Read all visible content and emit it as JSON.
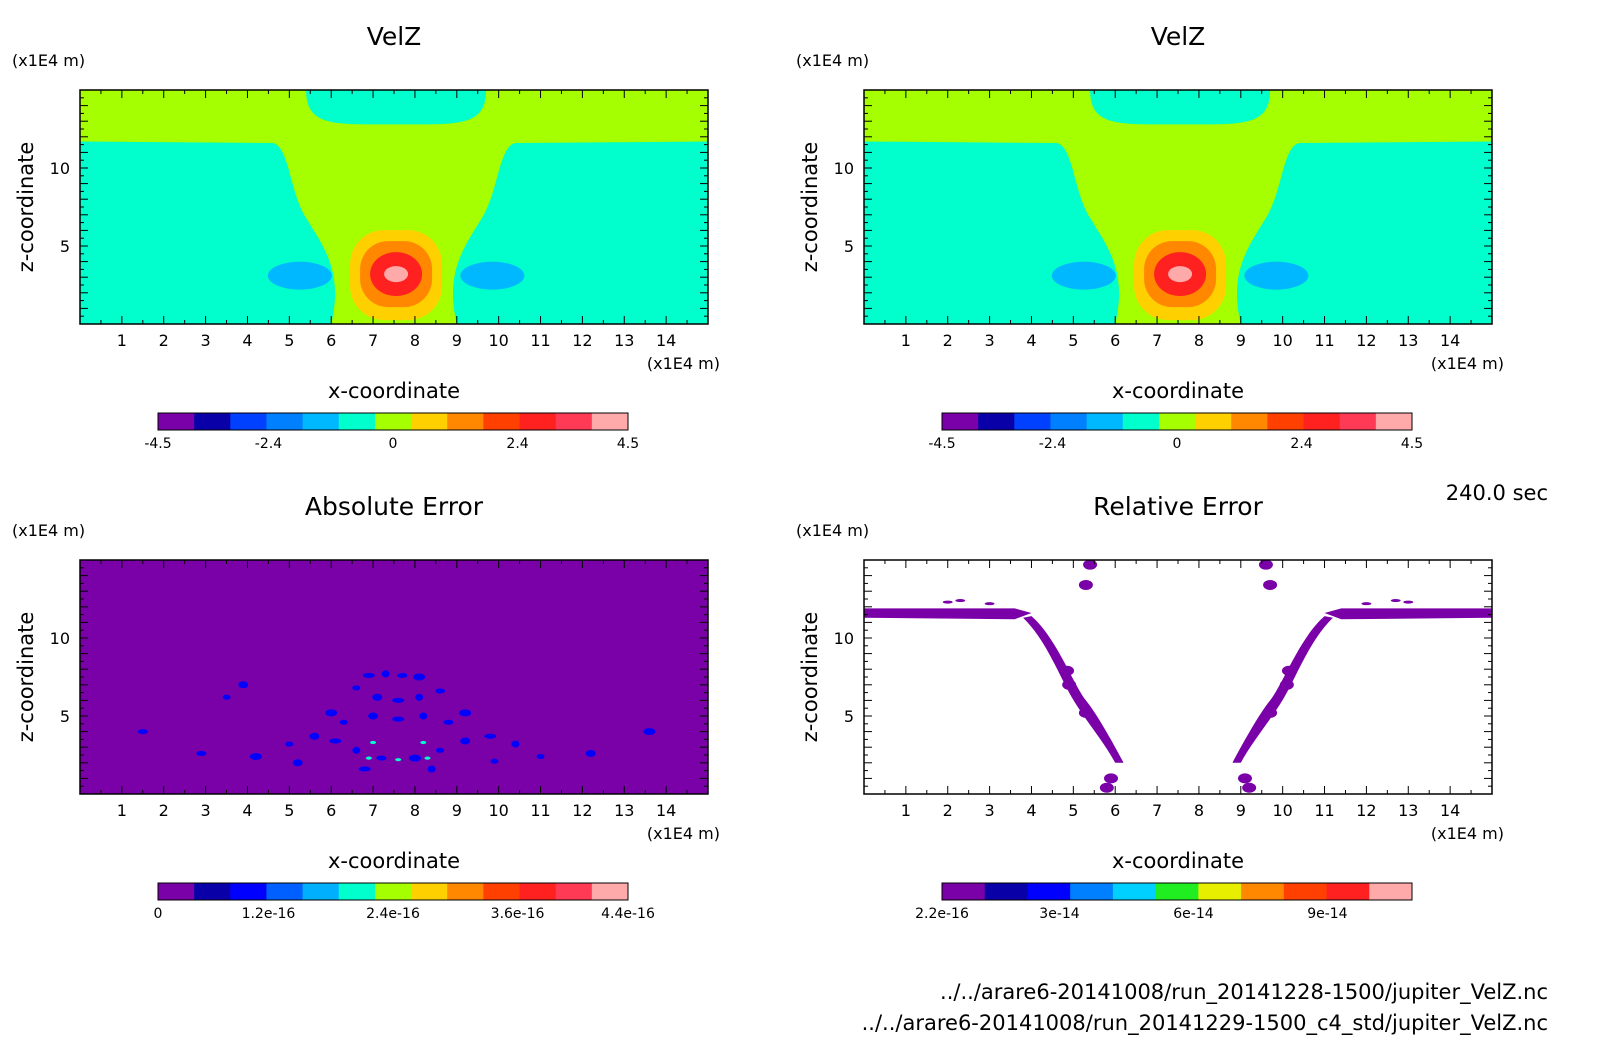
{
  "figure": {
    "time_label": "240.0 sec",
    "files": [
      "../../arare6-20141008/run_20141228-1500/jupiter_VelZ.nc",
      "../../arare6-20141008/run_20141229-1500_c4_std/jupiter_VelZ.nc"
    ]
  },
  "chart_data": [
    {
      "type": "heatmap",
      "title": "VelZ",
      "xlabel": "x-coordinate",
      "ylabel": "z-coordinate",
      "x_unit": "(x1E4 m)",
      "y_unit": "(x1E4 m)",
      "xlim": [
        0,
        15
      ],
      "ylim": [
        0,
        15
      ],
      "xticks": [
        "1",
        "2",
        "3",
        "4",
        "5",
        "6",
        "7",
        "8",
        "9",
        "10",
        "11",
        "12",
        "13",
        "14"
      ],
      "yticks": [
        "5",
        "10"
      ],
      "colorbar": {
        "labels": [
          "-4.5",
          "-2.4",
          "0",
          "2.4",
          "4.5"
        ],
        "colors": [
          "#7a00a8",
          "#0a00a8",
          "#0040ff",
          "#0080ff",
          "#00b8ff",
          "#00ffcc",
          "#a6ff00",
          "#ffd000",
          "#ff8800",
          "#ff4000",
          "#ff2020",
          "#ff3a55",
          "#ffaaaa"
        ]
      },
      "colors": {
        "bg": "#a6ff00",
        "neg1": "#00ffcc",
        "neg2": "#00b8ff",
        "pos1": "#ffd000",
        "pos2": "#ff8800",
        "pos3": "#ff2020",
        "pos4": "#ffaaaa"
      }
    },
    {
      "type": "heatmap",
      "title": "VelZ",
      "xlabel": "x-coordinate",
      "ylabel": "z-coordinate",
      "x_unit": "(x1E4 m)",
      "y_unit": "(x1E4 m)",
      "xlim": [
        0,
        15
      ],
      "ylim": [
        0,
        15
      ],
      "xticks": [
        "1",
        "2",
        "3",
        "4",
        "5",
        "6",
        "7",
        "8",
        "9",
        "10",
        "11",
        "12",
        "13",
        "14"
      ],
      "yticks": [
        "5",
        "10"
      ],
      "colorbar": {
        "labels": [
          "-4.5",
          "-2.4",
          "0",
          "2.4",
          "4.5"
        ],
        "colors": [
          "#7a00a8",
          "#0a00a8",
          "#0040ff",
          "#0080ff",
          "#00b8ff",
          "#00ffcc",
          "#a6ff00",
          "#ffd000",
          "#ff8800",
          "#ff4000",
          "#ff2020",
          "#ff3a55",
          "#ffaaaa"
        ]
      },
      "colors": {
        "bg": "#a6ff00",
        "neg1": "#00ffcc",
        "neg2": "#00b8ff",
        "pos1": "#ffd000",
        "pos2": "#ff8800",
        "pos3": "#ff2020",
        "pos4": "#ffaaaa"
      }
    },
    {
      "type": "heatmap",
      "title": "Absolute Error",
      "xlabel": "x-coordinate",
      "ylabel": "z-coordinate",
      "x_unit": "(x1E4 m)",
      "y_unit": "(x1E4 m)",
      "xlim": [
        0,
        15
      ],
      "ylim": [
        0,
        15
      ],
      "xticks": [
        "1",
        "2",
        "3",
        "4",
        "5",
        "6",
        "7",
        "8",
        "9",
        "10",
        "11",
        "12",
        "13",
        "14"
      ],
      "yticks": [
        "5",
        "10"
      ],
      "colorbar": {
        "labels": [
          "0",
          "1.2e-16",
          "2.4e-16",
          "3.6e-16",
          "4.4e-16"
        ],
        "colors": [
          "#7a00a8",
          "#0a00a8",
          "#0000ff",
          "#0060ff",
          "#00b0ff",
          "#00ffcc",
          "#a6ff00",
          "#ffd000",
          "#ff8800",
          "#ff4000",
          "#ff2020",
          "#ff3a55",
          "#ffaaaa"
        ]
      },
      "colors": {
        "bg": "#7a00a8",
        "spot": "#0000ff",
        "spot2": "#00ffcc"
      }
    },
    {
      "type": "heatmap",
      "title": "Relative Error",
      "xlabel": "x-coordinate",
      "ylabel": "z-coordinate",
      "x_unit": "(x1E4 m)",
      "y_unit": "(x1E4 m)",
      "xlim": [
        0,
        15
      ],
      "ylim": [
        0,
        15
      ],
      "xticks": [
        "1",
        "2",
        "3",
        "4",
        "5",
        "6",
        "7",
        "8",
        "9",
        "10",
        "11",
        "12",
        "13",
        "14"
      ],
      "yticks": [
        "5",
        "10"
      ],
      "colorbar": {
        "labels": [
          "2.2e-16",
          "3e-14",
          "6e-14",
          "9e-14"
        ],
        "colors": [
          "#7a00a8",
          "#0a00a8",
          "#0000ff",
          "#0080ff",
          "#00d0ff",
          "#20ee20",
          "#e8ee00",
          "#ff8800",
          "#ff4000",
          "#ff2020",
          "#ffaaaa"
        ]
      },
      "colors": {
        "bg": "#ffffff",
        "band": "#7a00a8"
      }
    }
  ]
}
